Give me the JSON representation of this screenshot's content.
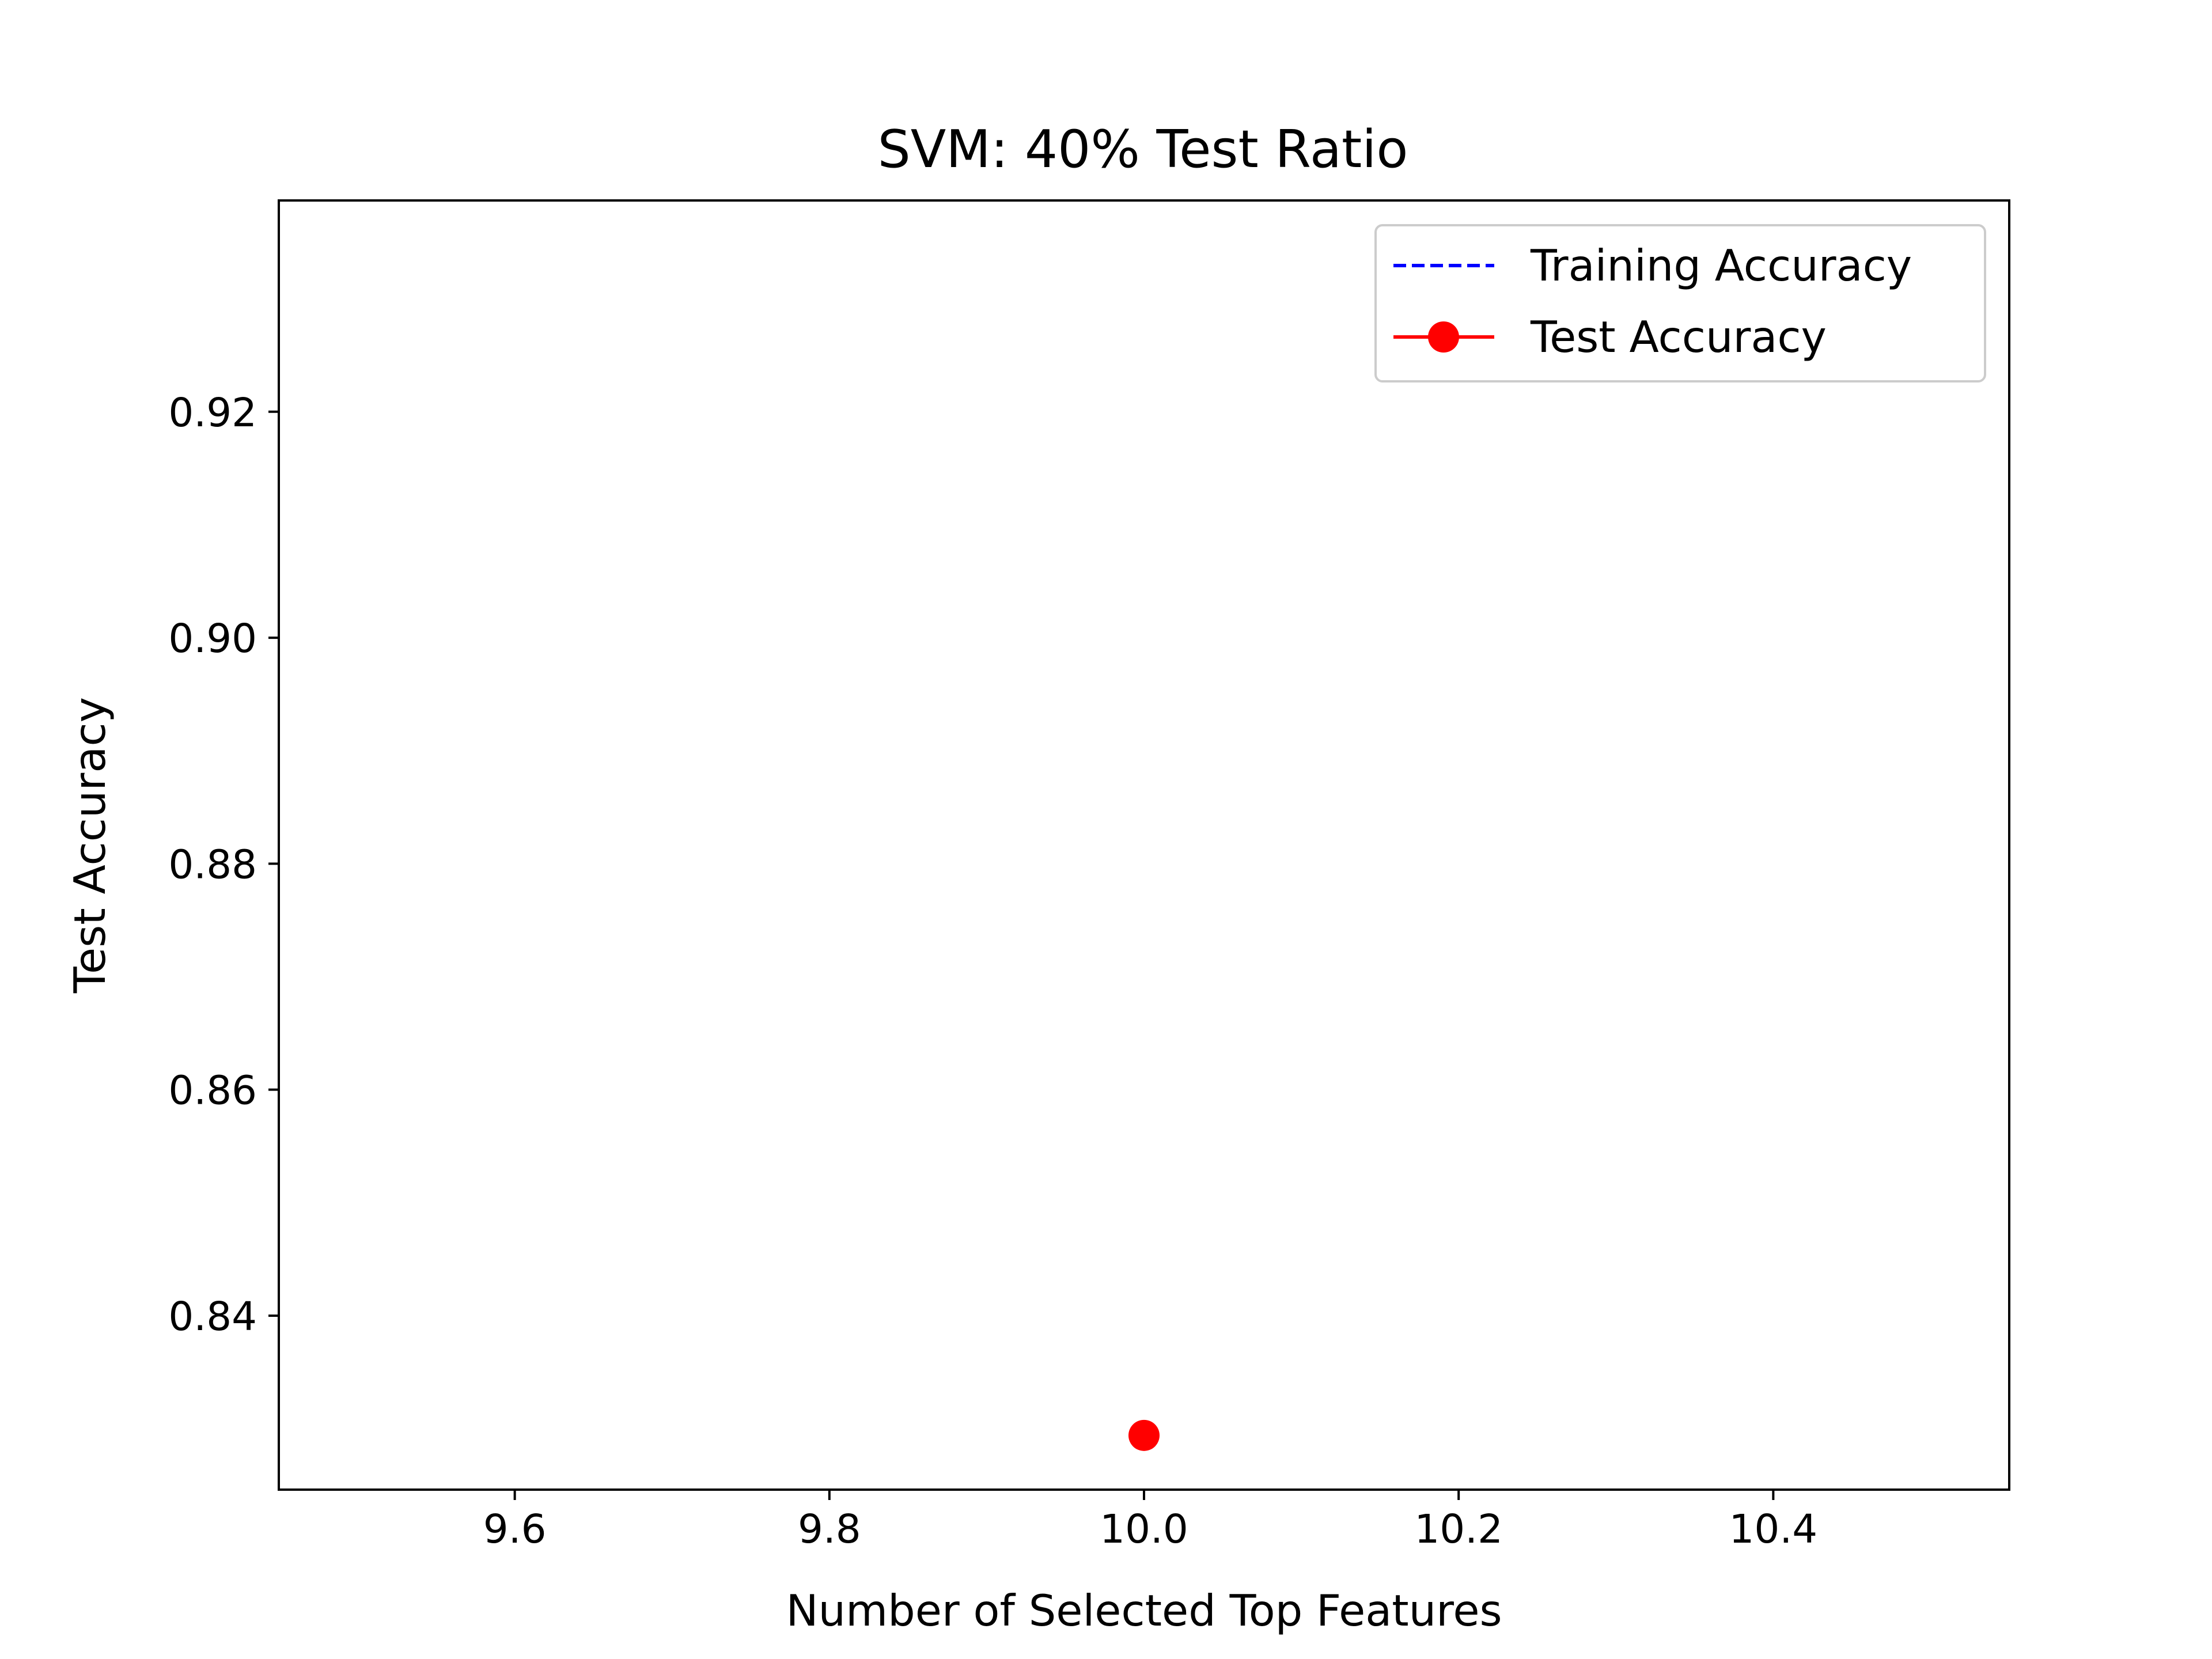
{
  "chart_data": {
    "type": "line",
    "title": "SVM: 40% Test Ratio",
    "xlabel": "Number of Selected Top Features",
    "ylabel": "Test Accuracy",
    "xlim": [
      9.45,
      10.55
    ],
    "ylim": [
      0.8246,
      0.9387
    ],
    "xticks": [
      "9.6",
      "9.8",
      "10.0",
      "10.2",
      "10.4"
    ],
    "xtick_values": [
      9.6,
      9.8,
      10.0,
      10.2,
      10.4
    ],
    "yticks": [
      "0.84",
      "0.86",
      "0.88",
      "0.90",
      "0.92"
    ],
    "ytick_values": [
      0.84,
      0.86,
      0.88,
      0.9,
      0.92
    ],
    "grid": false,
    "legend_position": "top-right",
    "series": [
      {
        "name": "Training Accuracy",
        "color": "#0000ff",
        "line_style": "dashed",
        "marker": "none",
        "x": [],
        "y": []
      },
      {
        "name": "Test Accuracy",
        "color": "#ff0000",
        "line_style": "solid",
        "marker": "circle",
        "x": [
          10
        ],
        "y": [
          0.8294
        ]
      }
    ]
  }
}
